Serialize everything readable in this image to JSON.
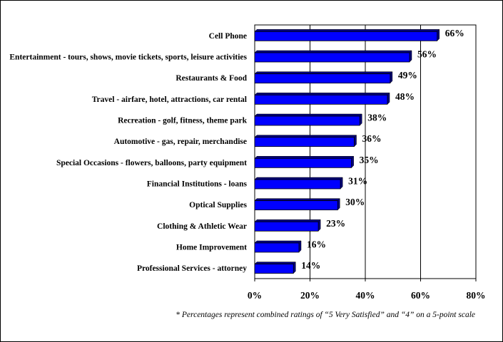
{
  "chart_data": {
    "type": "bar",
    "orientation": "horizontal",
    "categories": [
      "Cell Phone",
      "Entertainment - tours, shows, movie tickets, sports, leisure activities",
      "Restaurants & Food",
      "Travel - airfare, hotel, attractions, car rental",
      "Recreation - golf, fitness, theme park",
      "Automotive - gas, repair, merchandise",
      "Special Occasions - flowers, balloons, party equipment",
      "Financial Institutions - loans",
      "Optical Supplies",
      "Clothing & Athletic Wear",
      "Home Improvement",
      "Professional Services - attorney"
    ],
    "values": [
      66,
      56,
      49,
      48,
      38,
      36,
      35,
      31,
      30,
      23,
      16,
      14
    ],
    "value_labels": [
      "66%",
      "56%",
      "49%",
      "48%",
      "38%",
      "36%",
      "35%",
      "31%",
      "30%",
      "23%",
      "16%",
      "14%"
    ],
    "xlim": [
      0,
      80
    ],
    "ticks": [
      0,
      20,
      40,
      60,
      80
    ],
    "tick_labels": [
      "0%",
      "20%",
      "40%",
      "60%",
      "80%"
    ],
    "grid": "vertical",
    "bar_color": "#0000ff",
    "bar_shadow_color": "#00007a",
    "footnote": "* Percentages represent combined ratings of “5 Very Satisfied” and “4” on a 5-point scale"
  }
}
